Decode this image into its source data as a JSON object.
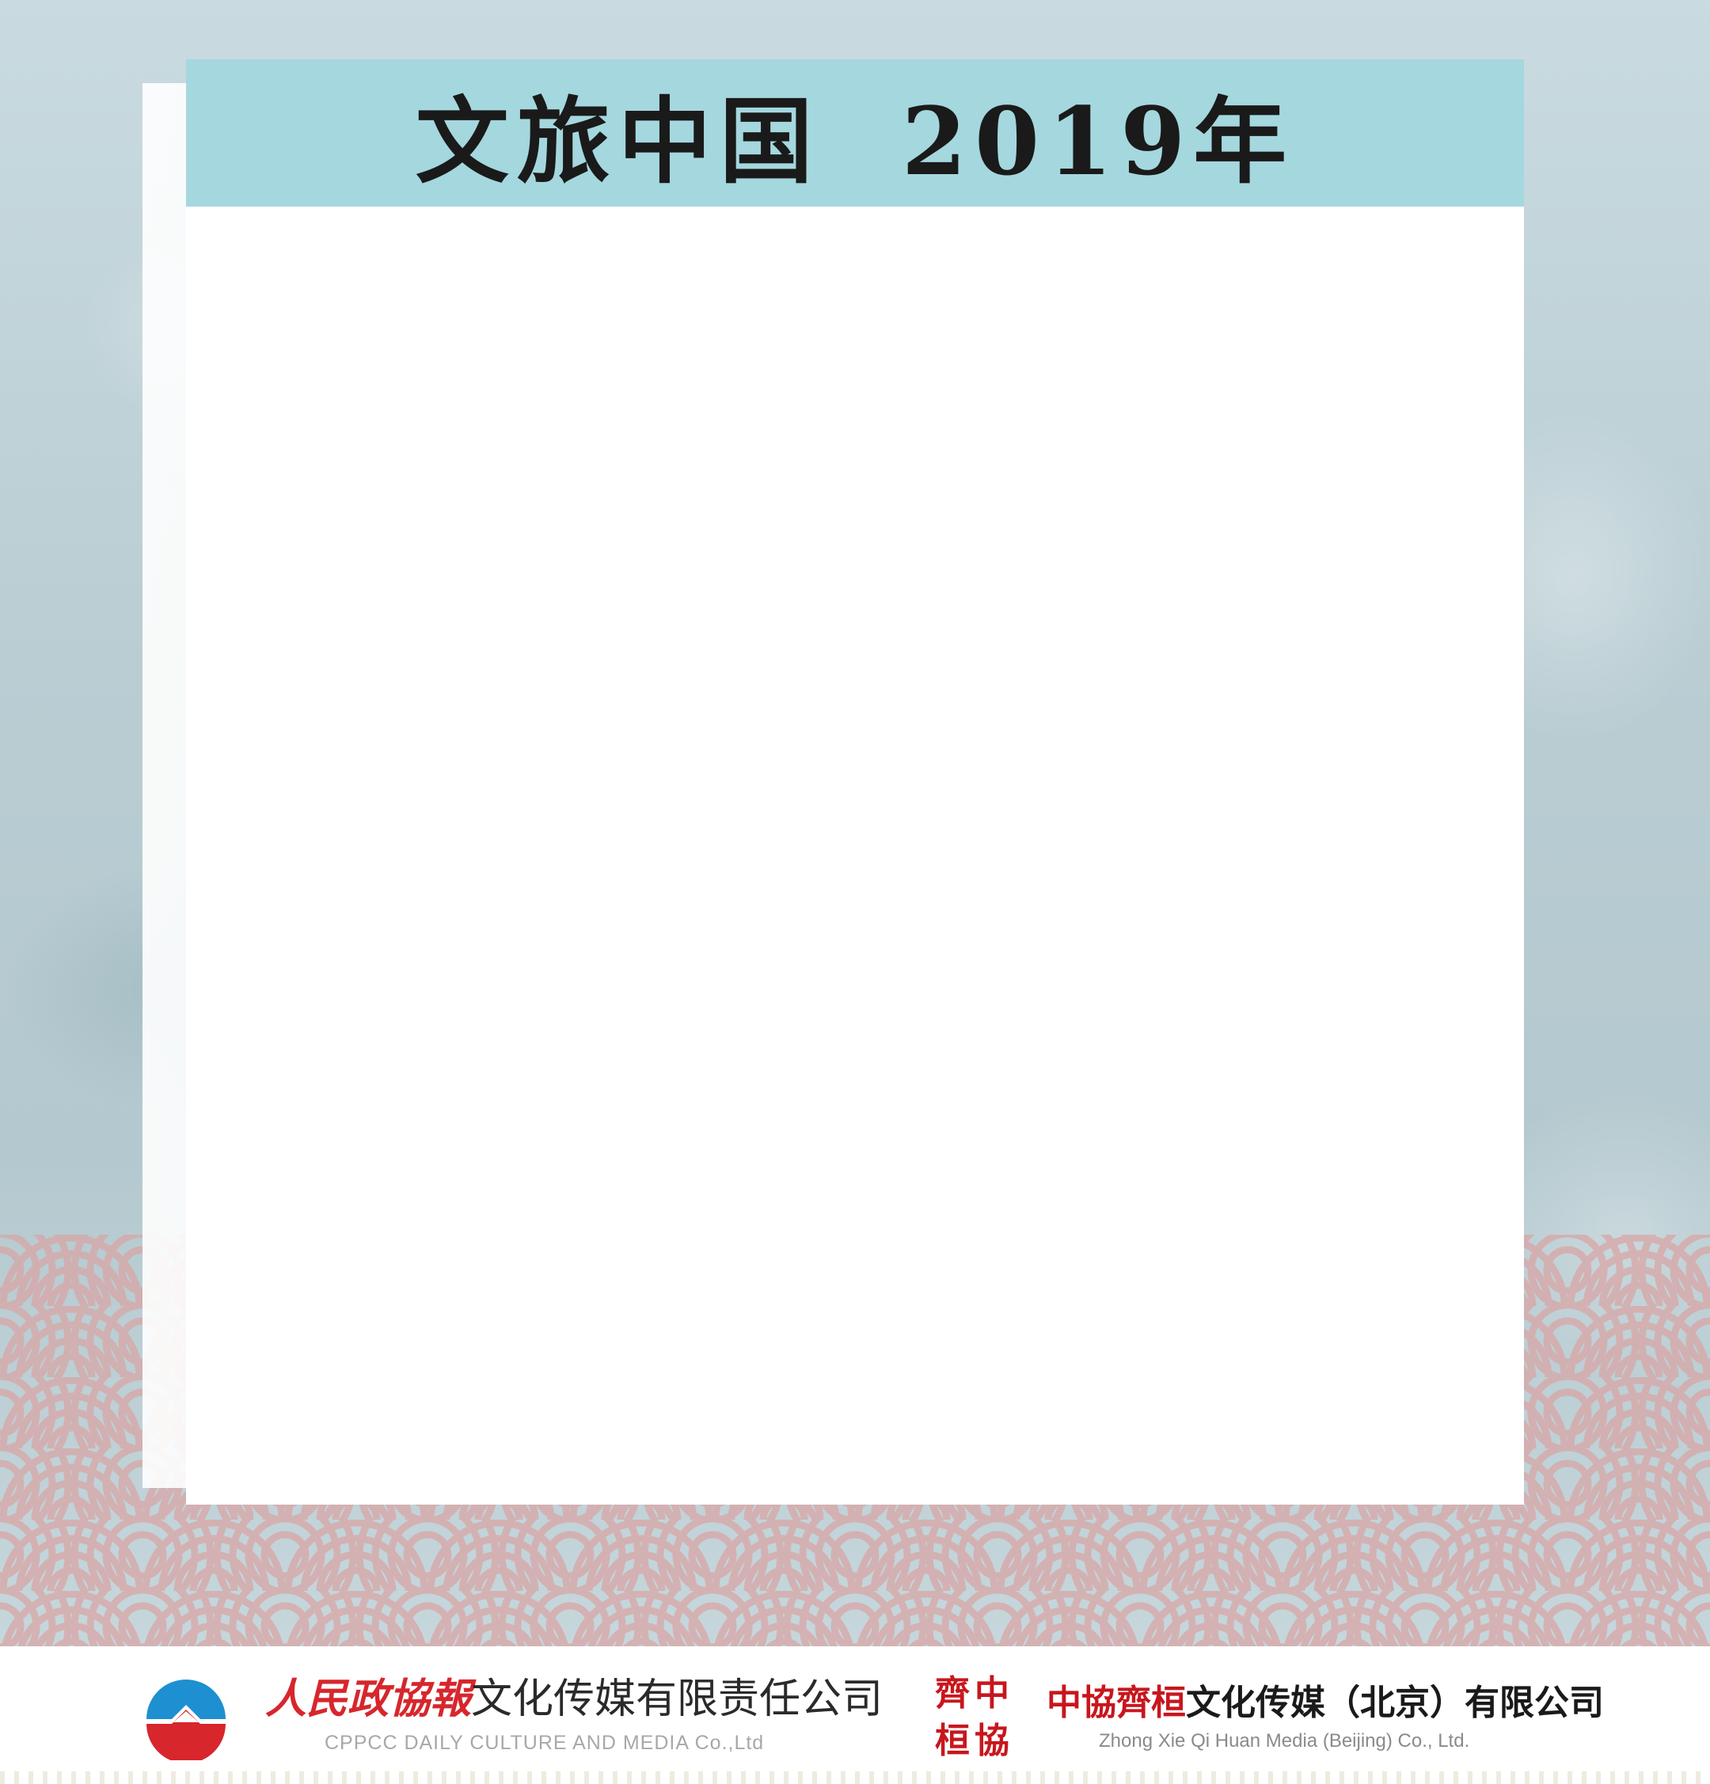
{
  "title": "文旅中国  2019年",
  "colors": {
    "title_bar": "#a5d7de",
    "logo_red": "#d7262c",
    "logo_blue": "#1e8fd0",
    "wave_pink": "#d9a6a6"
  },
  "footer": {
    "logo_left": {
      "brand": "人民政協報",
      "name": "文化传媒有限责任公司",
      "english": "CPPCC DAILY CULTURE AND MEDIA Co.,Ltd"
    },
    "logo_right": {
      "seal_chars": [
        "齊",
        "中",
        "桓",
        "協"
      ],
      "brand": "中協齊桓",
      "name": "文化传媒（北京）有限公司",
      "english": "Zhong Xie Qi Huan Media (Beijing) Co., Ltd."
    }
  }
}
